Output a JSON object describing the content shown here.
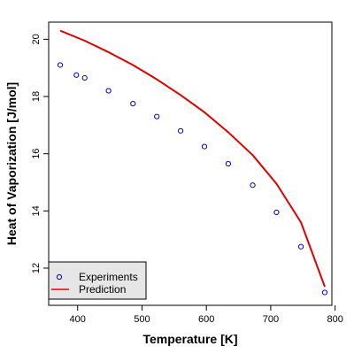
{
  "chart_data": {
    "type": "scatter",
    "xlabel": "Temperature [K]",
    "ylabel": "Heat of Vaporization [J/mol]",
    "xlim": [
      355,
      795
    ],
    "ylim": [
      10.7,
      20.6
    ],
    "x_ticks": [
      400,
      500,
      600,
      700,
      800
    ],
    "y_ticks": [
      12,
      14,
      16,
      18,
      20
    ],
    "grid": false,
    "legend_position": "bottom-left",
    "series": [
      {
        "name": "Experiments",
        "kind": "points",
        "color": "#0000cc",
        "x": [
          373,
          398,
          411,
          448,
          486,
          523,
          560,
          597,
          634,
          672,
          709,
          747,
          784
        ],
        "y": [
          19.1,
          18.75,
          18.65,
          18.2,
          17.75,
          17.3,
          16.8,
          16.25,
          15.65,
          14.9,
          13.95,
          12.75,
          11.15
        ]
      },
      {
        "name": "Prediction",
        "kind": "line",
        "color": "#dd0000",
        "x": [
          373,
          411,
          448,
          486,
          523,
          560,
          597,
          634,
          672,
          709,
          747,
          784
        ],
        "y": [
          20.3,
          19.95,
          19.55,
          19.1,
          18.6,
          18.05,
          17.45,
          16.75,
          15.95,
          14.95,
          13.6,
          11.35
        ]
      }
    ]
  }
}
